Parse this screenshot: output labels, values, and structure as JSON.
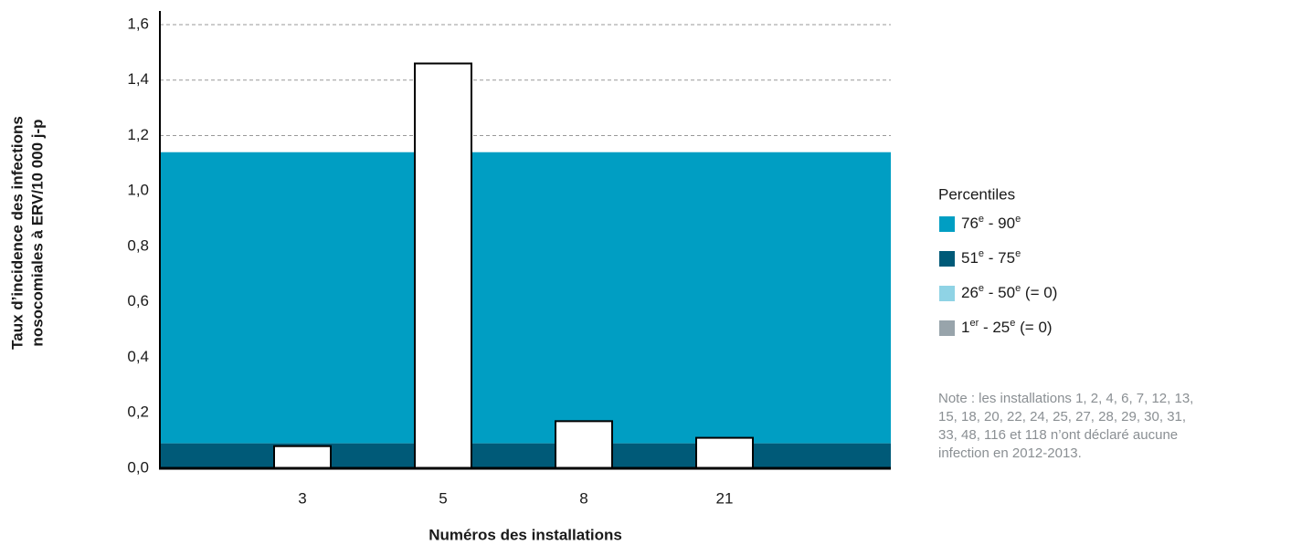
{
  "chart_data": {
    "type": "bar",
    "y_title": [
      "Taux d’incidence des infections",
      "nosocomiales à ERV/10 000 j-p"
    ],
    "x_title": "Numéros des installations",
    "categories": [
      "3",
      "5",
      "8",
      "21"
    ],
    "values": [
      0.08,
      1.46,
      0.17,
      0.11
    ],
    "color": "#ffffff",
    "ylim": [
      0,
      1.6
    ],
    "yticks": [
      {
        "value": 0,
        "label": "0,0"
      },
      {
        "value": 0.2,
        "label": "0,2"
      },
      {
        "value": 0.4,
        "label": "0,4"
      },
      {
        "value": 0.6,
        "label": "0,6"
      },
      {
        "value": 0.8,
        "label": "0,8"
      },
      {
        "value": 1.0,
        "label": "1,0"
      },
      {
        "value": 1.2,
        "label": "1,2"
      },
      {
        "value": 1.4,
        "label": "1,4"
      },
      {
        "value": 1.6,
        "label": "1,6"
      }
    ],
    "grid": true,
    "legend_title": "Percentiles",
    "bands": [
      {
        "name": [
          "76",
          "e",
          " - 90",
          "e"
        ],
        "color": "#009ec3",
        "value": 1.14
      },
      {
        "name": [
          "51",
          "e",
          " - 75",
          "e"
        ],
        "color": "#005a78",
        "value": 0.09
      },
      {
        "name": [
          "26",
          "e",
          " - 50",
          "e",
          " (= 0)"
        ],
        "color": "#8fd3e5",
        "value": 0
      },
      {
        "name": [
          "1",
          "er",
          " - 25",
          "e",
          " (= 0)"
        ],
        "color": "#98a4ab",
        "value": 0
      }
    ],
    "note": [
      "Note : les installations 1, 2, 4, 6, 7, 12, 13,",
      "15, 18, 20, 22, 24, 25, 27, 28, 29, 30, 31,",
      "33, 48, 116 et 118 n’ont déclaré aucune",
      "infection en 2012-2013."
    ]
  }
}
